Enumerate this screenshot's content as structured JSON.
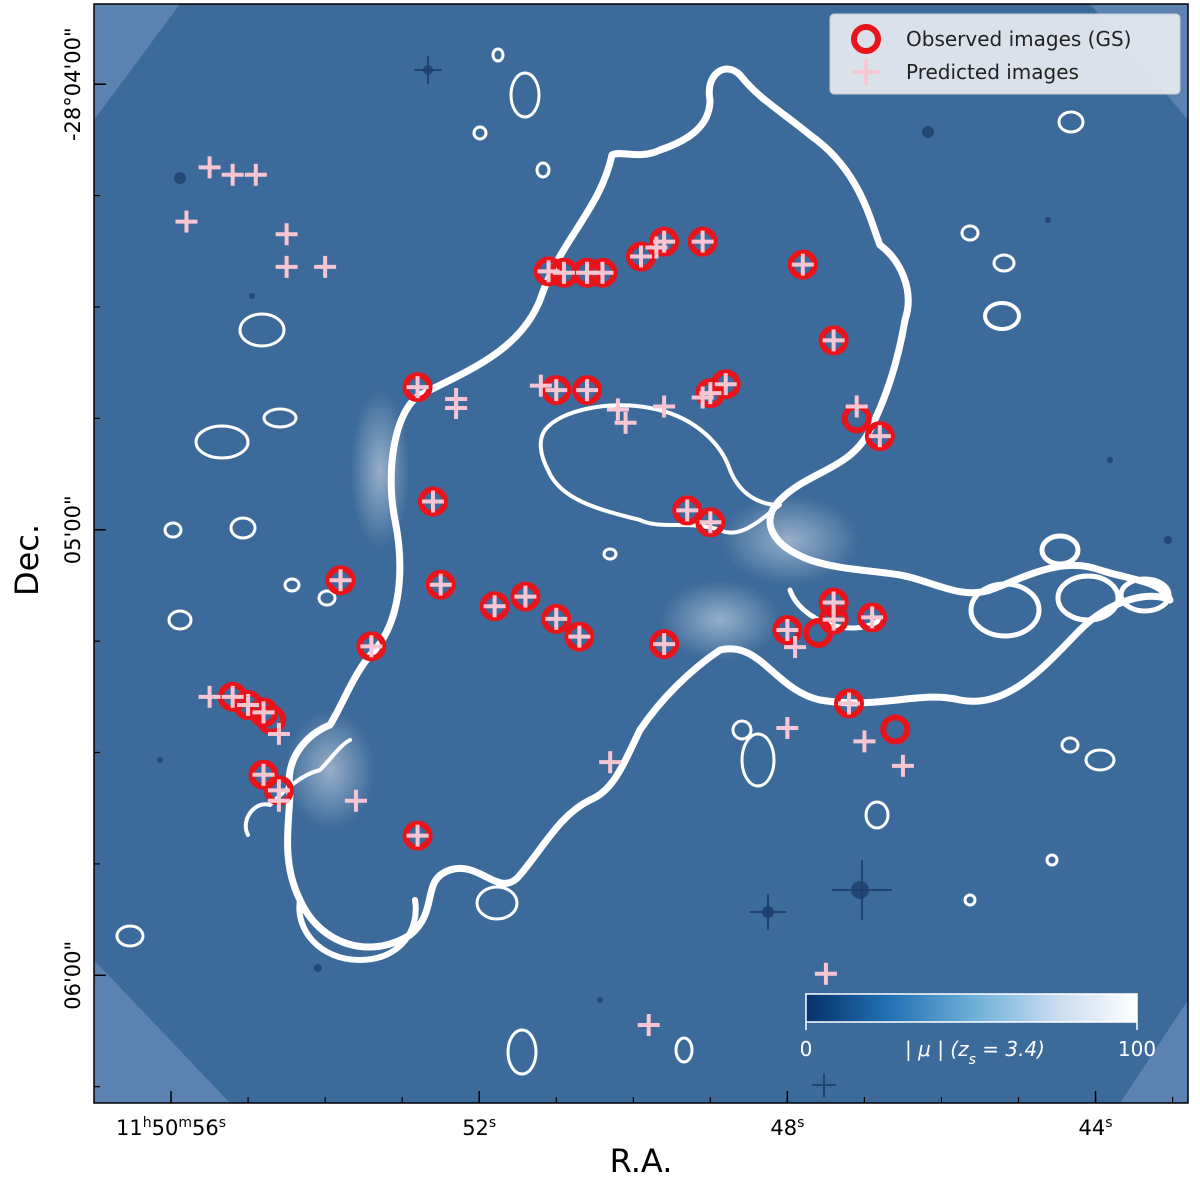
{
  "chart_data": {
    "type": "scatter",
    "background": "critical-curve magnification map (|mu|) over imaging field",
    "xlabel": "R.A.",
    "ylabel": "Dec.",
    "x_ticks": [
      {
        "value": 56,
        "label_main": "11",
        "sup1": "h",
        "label_mid": "50",
        "sup2": "m",
        "label_end": "56",
        "sup3": "s"
      },
      {
        "value": 52,
        "label_main": "52",
        "sup3": "s"
      },
      {
        "value": 48,
        "label_main": "48",
        "sup3": "s"
      },
      {
        "value": 44,
        "label_main": "44",
        "sup3": "s"
      }
    ],
    "y_ticks": [
      {
        "value": 0,
        "label": "-28°04'00\""
      },
      {
        "value": 60,
        "label": "05'00\""
      },
      {
        "value": 120,
        "label": "06'00\""
      }
    ],
    "xlim": [
      57.0,
      42.8
    ],
    "ylim": [
      -10.8,
      137.2
    ],
    "legend": {
      "position": "top-right",
      "entries": [
        {
          "label": "Observed images (GS)",
          "marker": "ring",
          "color": "#e8141c"
        },
        {
          "label": "Predicted images",
          "marker": "plus",
          "color": "#f8c6d2"
        }
      ]
    },
    "colorbar": {
      "min_label": "0",
      "max_label": "100",
      "label": "| μ |  (z",
      "label_sub": "s",
      "label_end": " = 3.4)",
      "cmap": [
        "#08306b",
        "#2171b5",
        "#6baed6",
        "#c6dbef",
        "#ffffff"
      ]
    },
    "colors": {
      "background_map": "#3c6a9a",
      "critical_curve": "#ffffff",
      "observed": "#e8141c",
      "predicted": "#f8c6d2"
    },
    "observed": [
      [
        51.1,
        25.2
      ],
      [
        50.9,
        25.4
      ],
      [
        50.6,
        25.4
      ],
      [
        50.4,
        25.4
      ],
      [
        49.9,
        23.2
      ],
      [
        49.6,
        21.2
      ],
      [
        49.1,
        21.2
      ],
      [
        47.8,
        24.3
      ],
      [
        47.4,
        34.5
      ],
      [
        52.8,
        40.8
      ],
      [
        51.0,
        41.2
      ],
      [
        50.6,
        41.2
      ],
      [
        49.0,
        41.6
      ],
      [
        48.8,
        40.4
      ],
      [
        47.1,
        45.0
      ],
      [
        46.8,
        47.4
      ],
      [
        52.6,
        56.2
      ],
      [
        49.3,
        57.4
      ],
      [
        49.0,
        59.0
      ],
      [
        53.8,
        66.8
      ],
      [
        52.5,
        67.4
      ],
      [
        51.8,
        70.3
      ],
      [
        51.4,
        69.0
      ],
      [
        51.0,
        72.0
      ],
      [
        50.7,
        74.4
      ],
      [
        49.6,
        75.4
      ],
      [
        48.0,
        73.5
      ],
      [
        47.6,
        73.9
      ],
      [
        47.4,
        69.8
      ],
      [
        47.4,
        72.1
      ],
      [
        46.9,
        71.8
      ],
      [
        53.4,
        75.7
      ],
      [
        55.2,
        82.5
      ],
      [
        55.0,
        83.6
      ],
      [
        54.8,
        84.6
      ],
      [
        54.7,
        85.6
      ],
      [
        47.2,
        83.4
      ],
      [
        46.6,
        86.9
      ],
      [
        54.8,
        93.0
      ],
      [
        54.6,
        95.1
      ],
      [
        52.8,
        101.2
      ]
    ],
    "predicted": [
      [
        55.5,
        11.2
      ],
      [
        55.2,
        12.2
      ],
      [
        54.9,
        12.2
      ],
      [
        55.8,
        18.5
      ],
      [
        54.5,
        20.2
      ],
      [
        54.5,
        24.6
      ],
      [
        54.0,
        24.6
      ],
      [
        51.1,
        25.2
      ],
      [
        50.9,
        25.4
      ],
      [
        50.6,
        25.4
      ],
      [
        50.4,
        25.4
      ],
      [
        49.9,
        23.2
      ],
      [
        49.7,
        22.0
      ],
      [
        49.6,
        21.2
      ],
      [
        49.1,
        21.2
      ],
      [
        47.8,
        24.3
      ],
      [
        47.4,
        34.5
      ],
      [
        52.8,
        40.8
      ],
      [
        52.3,
        42.4
      ],
      [
        52.3,
        43.6
      ],
      [
        51.2,
        40.6
      ],
      [
        51.0,
        41.2
      ],
      [
        50.6,
        41.2
      ],
      [
        50.2,
        43.8
      ],
      [
        50.1,
        45.6
      ],
      [
        49.6,
        43.4
      ],
      [
        49.1,
        42.2
      ],
      [
        49.0,
        41.6
      ],
      [
        48.8,
        40.4
      ],
      [
        47.1,
        43.4
      ],
      [
        46.8,
        47.4
      ],
      [
        52.6,
        56.2
      ],
      [
        49.3,
        57.4
      ],
      [
        49.0,
        59.0
      ],
      [
        53.8,
        66.8
      ],
      [
        52.5,
        67.4
      ],
      [
        51.8,
        70.3
      ],
      [
        51.4,
        69.0
      ],
      [
        51.0,
        72.0
      ],
      [
        50.7,
        74.4
      ],
      [
        49.6,
        75.4
      ],
      [
        48.0,
        73.5
      ],
      [
        47.9,
        75.8
      ],
      [
        47.4,
        69.8
      ],
      [
        47.4,
        72.1
      ],
      [
        46.9,
        71.8
      ],
      [
        53.4,
        75.7
      ],
      [
        55.5,
        82.5
      ],
      [
        55.2,
        82.5
      ],
      [
        55.0,
        83.6
      ],
      [
        54.8,
        84.6
      ],
      [
        54.6,
        87.5
      ],
      [
        50.3,
        91.3
      ],
      [
        48.0,
        86.7
      ],
      [
        47.2,
        83.4
      ],
      [
        47.0,
        88.5
      ],
      [
        46.5,
        91.8
      ],
      [
        54.8,
        93.0
      ],
      [
        54.6,
        95.1
      ],
      [
        54.6,
        96.5
      ],
      [
        53.6,
        96.5
      ],
      [
        52.8,
        101.2
      ],
      [
        47.5,
        119.8
      ],
      [
        49.8,
        126.7
      ]
    ]
  }
}
